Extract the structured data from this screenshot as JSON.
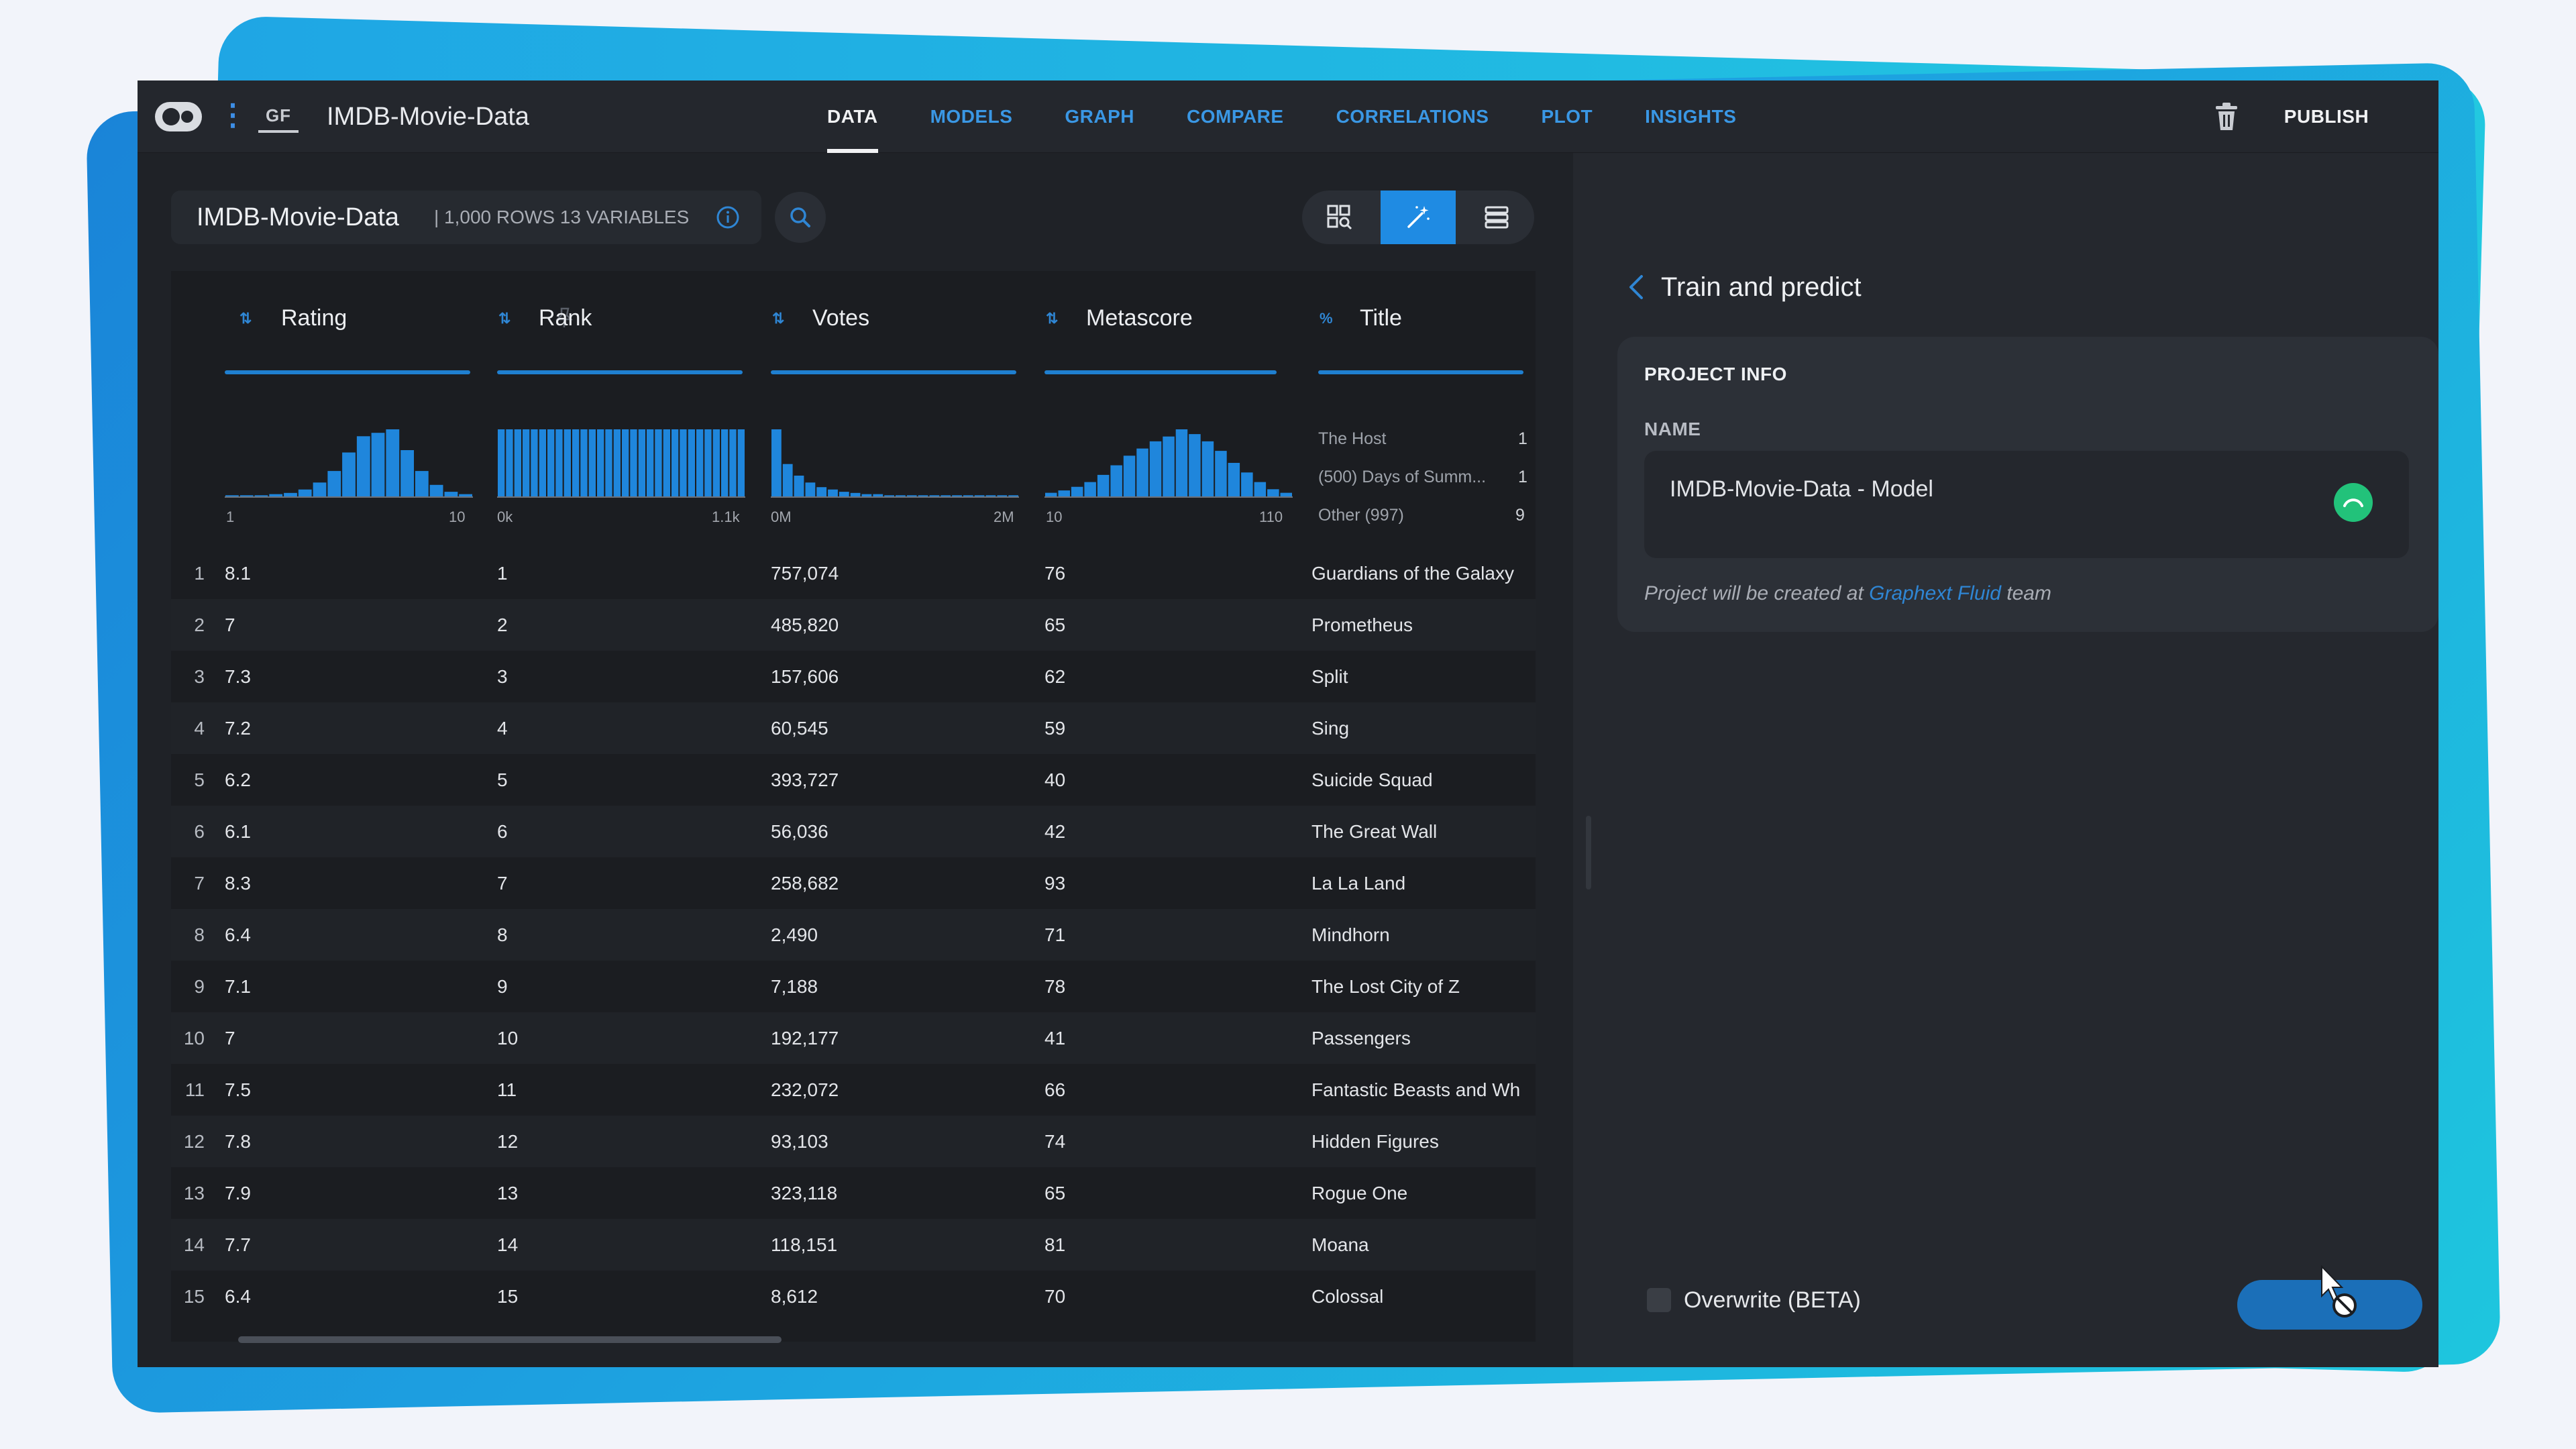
{
  "app": {
    "logo_icon": "graphext-logo-icon",
    "badge": "GF",
    "title": "IMDB-Movie-Data"
  },
  "nav": {
    "tabs": [
      "DATA",
      "MODELS",
      "GRAPH",
      "COMPARE",
      "CORRELATIONS",
      "PLOT",
      "INSIGHTS"
    ],
    "active": "DATA"
  },
  "toolbar": {
    "delete_icon": "trash-icon",
    "publish_label": "PUBLISH"
  },
  "dataset": {
    "name": "IMDB-Movie-Data",
    "meta": "| 1,000 ROWS  13 VARIABLES"
  },
  "columns": [
    {
      "label": "Rating",
      "axis_min": "1",
      "axis_max": "10"
    },
    {
      "label": "Rank",
      "axis_min": "0k",
      "axis_max": "1.1k"
    },
    {
      "label": "Votes",
      "axis_min": "0M",
      "axis_max": "2M"
    },
    {
      "label": "Metascore",
      "axis_min": "10",
      "axis_max": "110"
    },
    {
      "label": "Title",
      "top_values": [
        {
          "label": "The Host",
          "count": "1"
        },
        {
          "label": "(500) Days of Summ...",
          "count": "1"
        },
        {
          "label": "Other (997)",
          "count": "9"
        }
      ]
    }
  ],
  "histograms": {
    "rating": [
      1,
      1,
      1,
      2,
      3,
      6,
      12,
      22,
      38,
      52,
      55,
      58,
      40,
      22,
      10,
      4,
      2
    ],
    "rank": [
      58,
      58,
      58,
      58,
      58,
      58,
      58,
      58,
      58,
      58,
      58,
      58,
      58,
      58,
      58,
      58,
      58,
      58,
      58,
      58,
      58,
      58,
      58,
      58,
      58,
      58,
      58,
      58,
      58,
      58
    ],
    "votes": [
      58,
      28,
      18,
      12,
      8,
      6,
      4,
      3,
      2,
      2,
      1,
      1,
      1,
      1,
      1,
      1,
      1,
      1,
      1,
      1,
      1,
      1
    ],
    "metascore": [
      3,
      5,
      8,
      12,
      18,
      26,
      34,
      40,
      46,
      50,
      56,
      52,
      46,
      38,
      28,
      20,
      12,
      6,
      3
    ]
  },
  "rows": [
    {
      "n": "1",
      "rating": "8.1",
      "rank": "1",
      "votes": "757,074",
      "metascore": "76",
      "title": "Guardians of the Galaxy"
    },
    {
      "n": "2",
      "rating": "7",
      "rank": "2",
      "votes": "485,820",
      "metascore": "65",
      "title": "Prometheus"
    },
    {
      "n": "3",
      "rating": "7.3",
      "rank": "3",
      "votes": "157,606",
      "metascore": "62",
      "title": "Split"
    },
    {
      "n": "4",
      "rating": "7.2",
      "rank": "4",
      "votes": "60,545",
      "metascore": "59",
      "title": "Sing"
    },
    {
      "n": "5",
      "rating": "6.2",
      "rank": "5",
      "votes": "393,727",
      "metascore": "40",
      "title": "Suicide Squad"
    },
    {
      "n": "6",
      "rating": "6.1",
      "rank": "6",
      "votes": "56,036",
      "metascore": "42",
      "title": "The Great Wall"
    },
    {
      "n": "7",
      "rating": "8.3",
      "rank": "7",
      "votes": "258,682",
      "metascore": "93",
      "title": "La La Land"
    },
    {
      "n": "8",
      "rating": "6.4",
      "rank": "8",
      "votes": "2,490",
      "metascore": "71",
      "title": "Mindhorn"
    },
    {
      "n": "9",
      "rating": "7.1",
      "rank": "9",
      "votes": "7,188",
      "metascore": "78",
      "title": "The Lost City of Z"
    },
    {
      "n": "10",
      "rating": "7",
      "rank": "10",
      "votes": "192,177",
      "metascore": "41",
      "title": "Passengers"
    },
    {
      "n": "11",
      "rating": "7.5",
      "rank": "11",
      "votes": "232,072",
      "metascore": "66",
      "title": "Fantastic Beasts and Wh"
    },
    {
      "n": "12",
      "rating": "7.8",
      "rank": "12",
      "votes": "93,103",
      "metascore": "74",
      "title": "Hidden Figures"
    },
    {
      "n": "13",
      "rating": "7.9",
      "rank": "13",
      "votes": "323,118",
      "metascore": "65",
      "title": "Rogue One"
    },
    {
      "n": "14",
      "rating": "7.7",
      "rank": "14",
      "votes": "118,151",
      "metascore": "81",
      "title": "Moana"
    },
    {
      "n": "15",
      "rating": "6.4",
      "rank": "15",
      "votes": "8,612",
      "metascore": "70",
      "title": "Colossal"
    }
  ],
  "panel": {
    "title": "Train and predict",
    "section": "PROJECT INFO",
    "name_label": "NAME",
    "name_value": "IMDB-Movie-Data - Model",
    "note_prefix": "Project will be created at",
    "note_link": "Graphext Fluid",
    "note_suffix": "team",
    "overwrite_label": "Overwrite (BETA)"
  },
  "help_label": "?",
  "colors": {
    "accent": "#1f8be3",
    "histogram": "#1f86dc",
    "success": "#22c27a",
    "link": "#2f86d4"
  }
}
